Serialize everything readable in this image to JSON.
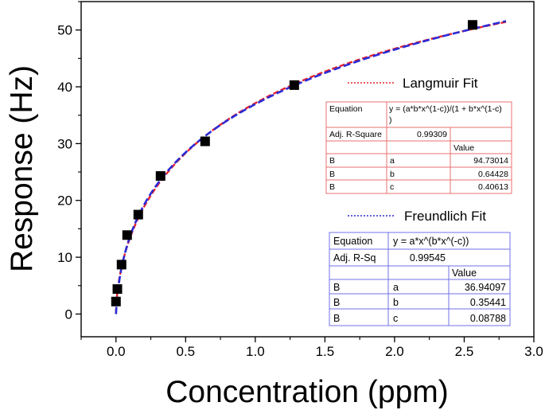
{
  "chart_data": {
    "type": "scatter",
    "xlabel": "Concentration (ppm)",
    "ylabel": "Response (Hz)",
    "xlim": [
      -0.25,
      3.0
    ],
    "ylim": [
      -4,
      55
    ],
    "xticks": [
      0.0,
      0.5,
      1.0,
      1.5,
      2.0,
      2.5,
      3.0
    ],
    "xtick_labels": [
      "0.0",
      "0.5",
      "1.0",
      "1.5",
      "2.0",
      "2.5",
      "3.0"
    ],
    "yticks": [
      0,
      10,
      20,
      30,
      40,
      50
    ],
    "ytick_labels": [
      "0",
      "10",
      "20",
      "30",
      "40",
      "50"
    ],
    "grid": false,
    "markers": {
      "color": "#000000",
      "points": [
        {
          "x": 0.0,
          "y": 2.2
        },
        {
          "x": 0.01,
          "y": 4.4
        },
        {
          "x": 0.04,
          "y": 8.7
        },
        {
          "x": 0.08,
          "y": 13.9
        },
        {
          "x": 0.16,
          "y": 17.5
        },
        {
          "x": 0.32,
          "y": 24.3
        },
        {
          "x": 0.64,
          "y": 30.4
        },
        {
          "x": 1.28,
          "y": 40.3
        },
        {
          "x": 2.56,
          "y": 50.9
        }
      ]
    },
    "fits": [
      {
        "name": "Langmuir Fit",
        "color": "#e8202a",
        "dash": "dashed",
        "legend_line": "dotted",
        "x_range": [
          0.0,
          2.8
        ],
        "params": {
          "a": 94.73014,
          "b": 0.64428,
          "c": 0.40613
        },
        "table": {
          "equation_label": "Equation",
          "equation": "y = (a*b*x^(1-c))/(1 + b*x^(1-c)",
          "equation_cont": ")",
          "adj_label": "Adj. R-Square",
          "adj_value": "0.99309",
          "value_header": "Value",
          "rows": [
            {
              "g": "B",
              "p": "a",
              "v": "94.73014"
            },
            {
              "g": "B",
              "p": "b",
              "v": "0.64428"
            },
            {
              "g": "B",
              "p": "c",
              "v": "0.40613"
            }
          ]
        }
      },
      {
        "name": "Freundlich Fit",
        "color": "#2b2bd6",
        "dash": "dashed",
        "legend_line": "dotted",
        "x_range": [
          0.0,
          2.8
        ],
        "params": {
          "a": 36.94097,
          "b": 0.35441,
          "c": 0.08788
        },
        "table": {
          "equation_label": "Equation",
          "equation": "y = a*x^(b*x^(-c))",
          "adj_label": "Adj. R-Sq",
          "adj_value": "0.99545",
          "value_header": "Value",
          "rows": [
            {
              "g": "B",
              "p": "a",
              "v": "36.94097"
            },
            {
              "g": "B",
              "p": "b",
              "v": "0.35441"
            },
            {
              "g": "B",
              "p": "c",
              "v": "0.08788"
            }
          ]
        }
      }
    ]
  }
}
